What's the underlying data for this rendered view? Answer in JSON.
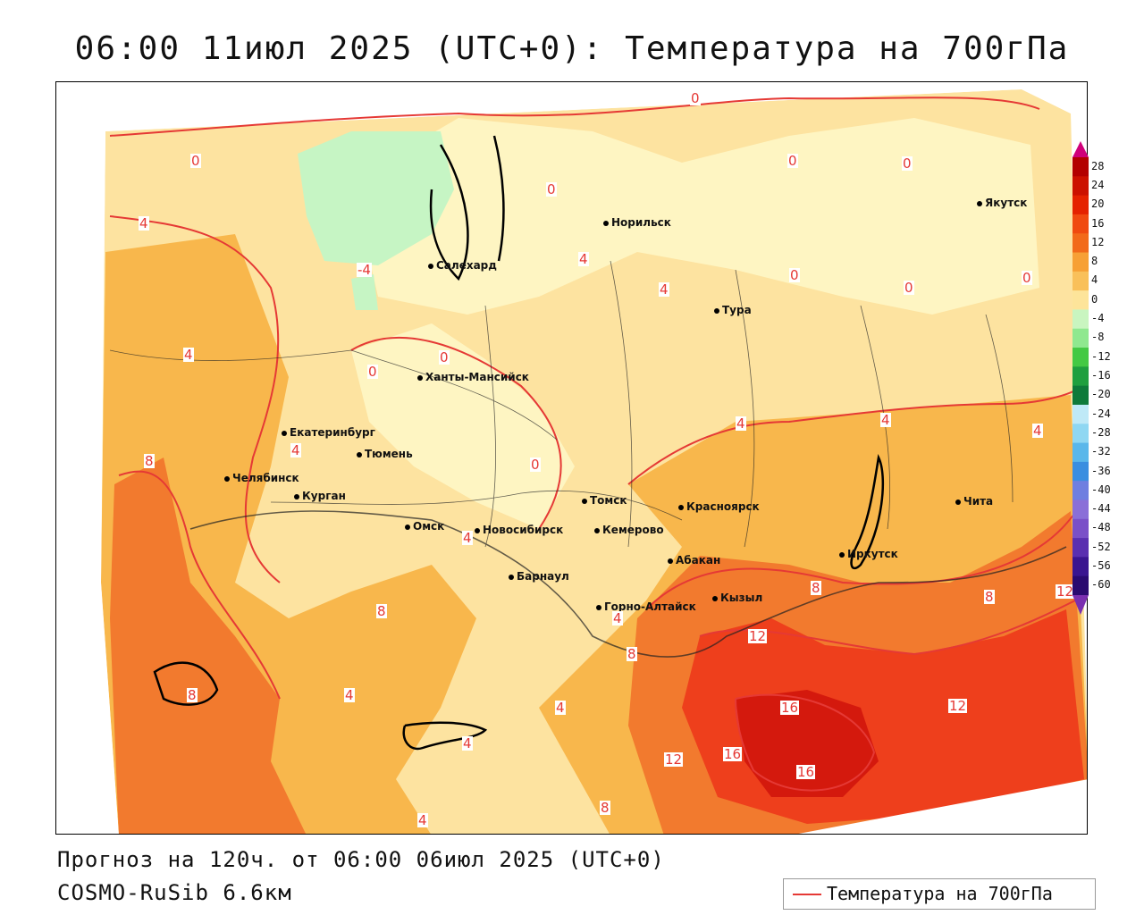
{
  "title": "06:00 11июл 2025 (UTC+0): Температура на 700гПа",
  "forecast_line": "Прогноз на 120ч. от 06:00 06июл 2025 (UTC+0)",
  "model_line": "COSMO-RuSib 6.6км",
  "legend_label": "Температура на 700гПа",
  "legend_color": "#e53935",
  "cities": [
    {
      "name": "Норильск"
    },
    {
      "name": "Якутск"
    },
    {
      "name": "Салехард"
    },
    {
      "name": "Тура"
    },
    {
      "name": "Ханты-Мансийск"
    },
    {
      "name": "Екатеринбург"
    },
    {
      "name": "Тюмень"
    },
    {
      "name": "Челябинск"
    },
    {
      "name": "Курган"
    },
    {
      "name": "Омск"
    },
    {
      "name": "Новосибирск"
    },
    {
      "name": "Томск"
    },
    {
      "name": "Кемерово"
    },
    {
      "name": "Красноярск"
    },
    {
      "name": "Абакан"
    },
    {
      "name": "Иркутск"
    },
    {
      "name": "Чита"
    },
    {
      "name": "Барнаул"
    },
    {
      "name": "Горно-Алтайск"
    },
    {
      "name": "Кызыл"
    }
  ],
  "isotherm_labels": [
    {
      "value": "0"
    },
    {
      "value": "0"
    },
    {
      "value": "0"
    },
    {
      "value": "0"
    },
    {
      "value": "0"
    },
    {
      "value": "0"
    },
    {
      "value": "0"
    },
    {
      "value": "0"
    },
    {
      "value": "0"
    },
    {
      "value": "0"
    },
    {
      "value": "0"
    },
    {
      "value": "-4"
    },
    {
      "value": "4"
    },
    {
      "value": "4"
    },
    {
      "value": "4"
    },
    {
      "value": "4"
    },
    {
      "value": "4"
    },
    {
      "value": "4"
    },
    {
      "value": "4"
    },
    {
      "value": "4"
    },
    {
      "value": "4"
    },
    {
      "value": "4"
    },
    {
      "value": "4"
    },
    {
      "value": "4"
    },
    {
      "value": "4"
    },
    {
      "value": "4"
    },
    {
      "value": "8"
    },
    {
      "value": "8"
    },
    {
      "value": "8"
    },
    {
      "value": "8"
    },
    {
      "value": "8"
    },
    {
      "value": "8"
    },
    {
      "value": "8"
    },
    {
      "value": "12"
    },
    {
      "value": "12"
    },
    {
      "value": "12"
    },
    {
      "value": "12"
    },
    {
      "value": "16"
    },
    {
      "value": "16"
    },
    {
      "value": "16"
    }
  ],
  "colorbar": {
    "ticks": [
      "28",
      "24",
      "20",
      "16",
      "12",
      "8",
      "4",
      "0",
      "-4",
      "-8",
      "-12",
      "-16",
      "-20",
      "-24",
      "-28",
      "-32",
      "-36",
      "-40",
      "-44",
      "-48",
      "-52",
      "-56",
      "-60"
    ],
    "colors": [
      "#b30000",
      "#cc1100",
      "#e52200",
      "#f04a10",
      "#f26a1a",
      "#f7a035",
      "#f9c05a",
      "#fde49a",
      "#c9f5c0",
      "#8fe88f",
      "#44c944",
      "#1f9f3f",
      "#0e7a3a",
      "#bfe9f7",
      "#8fd7f2",
      "#5ab7ea",
      "#3a8ee0",
      "#6f7fe0",
      "#8a6fd8",
      "#7a50c8",
      "#5a2fb0",
      "#3a1590",
      "#2a0a70"
    ]
  }
}
